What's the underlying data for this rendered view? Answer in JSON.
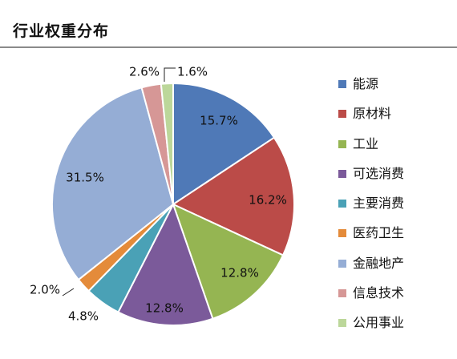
{
  "title": "行业权重分布",
  "chart_data": {
    "type": "pie",
    "title": "行业权重分布",
    "legend_position": "right",
    "slices": [
      {
        "name": "能源",
        "value": 15.7,
        "label": "15.7%",
        "color": "#4f79b7"
      },
      {
        "name": "原材料",
        "value": 16.2,
        "label": "16.2%",
        "color": "#bb4b48"
      },
      {
        "name": "工业",
        "value": 12.8,
        "label": "12.8%",
        "color": "#95b552"
      },
      {
        "name": "可选消费",
        "value": 12.8,
        "label": "12.8%",
        "color": "#7b5a9a"
      },
      {
        "name": "主要消费",
        "value": 4.8,
        "label": "4.8%",
        "color": "#4aa1b6"
      },
      {
        "name": "医药卫生",
        "value": 2.0,
        "label": "2.0%",
        "color": "#e48b3a"
      },
      {
        "name": "金融地产",
        "value": 31.5,
        "label": "31.5%",
        "color": "#95add5"
      },
      {
        "name": "信息技术",
        "value": 2.6,
        "label": "2.6%",
        "color": "#d69796"
      },
      {
        "name": "公用事业",
        "value": 1.6,
        "label": "1.6%",
        "color": "#bcd79a"
      }
    ]
  }
}
